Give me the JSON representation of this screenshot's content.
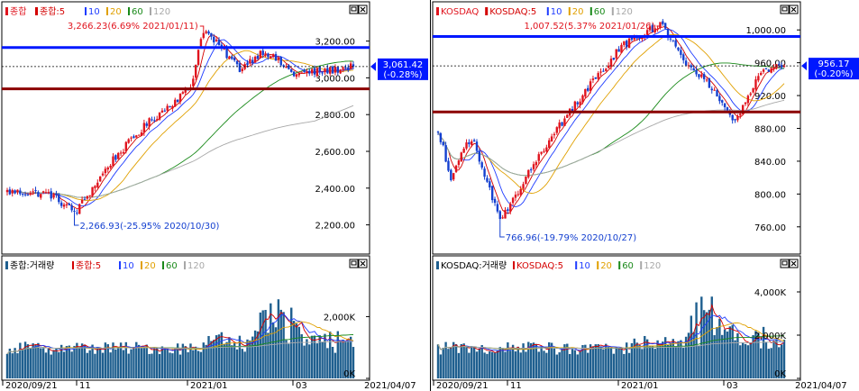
{
  "colors": {
    "up": "#e0141e",
    "down": "#1440d0",
    "ma5": "#d40000",
    "ma10": "#1e3cff",
    "ma20": "#e0a000",
    "ma60": "#1a8a1a",
    "ma120": "#a8a8a8",
    "blueline": "#0018ff",
    "redline": "#8b0000",
    "volbar": "#1f5f8f",
    "panel_border": "#000000"
  },
  "icons": [
    "window-maximize-icon",
    "window-close-icon",
    "price-marker-arrow-icon",
    "legend-square-icon"
  ],
  "xaxis": {
    "labels": [
      "2020/09/21",
      "11",
      "2021/01",
      "03",
      "2021/04/07"
    ]
  },
  "panels": [
    {
      "name": "kospi",
      "price_legend": {
        "sym": "종합",
        "ma5": "종합:5",
        "ma10": "10",
        "ma20": "20",
        "ma60": "60",
        "ma120": "120"
      },
      "vol_legend": {
        "vol": "종합:거래량",
        "ma5": "종합:5",
        "ma10": "10",
        "ma20": "20",
        "ma60": "60",
        "ma120": "120"
      },
      "price_ticks": [
        "3,200.00",
        "3,000.00",
        "2,800.00",
        "2,600.00",
        "2,400.00",
        "2,200.00"
      ],
      "vol_ticks": [
        "2,000K",
        "0K"
      ],
      "current": {
        "value": "3,061.42",
        "change": "(-0.28%)"
      },
      "high_annotation": "3,266.23(6.69% 2021/01/11)",
      "low_annotation": "2,266.93(-25.95% 2020/10/30)"
    },
    {
      "name": "kosdaq",
      "price_legend": {
        "sym": "KOSDAQ",
        "ma5": "KOSDAQ:5",
        "ma10": "10",
        "ma20": "20",
        "ma60": "60",
        "ma120": "120"
      },
      "vol_legend": {
        "vol": "KOSDAQ:거래량",
        "ma5": "KOSDAQ:5",
        "ma10": "10",
        "ma20": "20",
        "ma60": "60",
        "ma120": "120"
      },
      "price_ticks": [
        "1,000.00",
        "960.00",
        "920.00",
        "880.00",
        "840.00",
        "800.00",
        "760.00"
      ],
      "vol_ticks": [
        "4,000K",
        "2,000K",
        "0K"
      ],
      "current": {
        "value": "956.17",
        "change": "(-0.20%)"
      },
      "high_annotation": "1,007.52(5.37% 2021/01/26)",
      "low_annotation": "766.96(-19.79% 2020/10/27)"
    }
  ],
  "chart_data": [
    {
      "type": "candlestick",
      "title": "종합",
      "x_range": [
        "2020/09/21",
        "2021/04/07"
      ],
      "ylim": [
        2100,
        3350
      ],
      "key_points": [
        {
          "x": "2020/09/21",
          "y": 2380
        },
        {
          "x": "2020/10/15",
          "y": 2370
        },
        {
          "x": "2020/10/30",
          "y": 2267
        },
        {
          "x": "2020/11/20",
          "y": 2550
        },
        {
          "x": "2020/12/10",
          "y": 2750
        },
        {
          "x": "2021/01/04",
          "y": 2950
        },
        {
          "x": "2021/01/11",
          "y": 3266
        },
        {
          "x": "2021/02/01",
          "y": 3050
        },
        {
          "x": "2021/02/15",
          "y": 3150
        },
        {
          "x": "2021/03/04",
          "y": 3020
        },
        {
          "x": "2021/03/25",
          "y": 3040
        },
        {
          "x": "2021/04/07",
          "y": 3061.42
        }
      ],
      "horizontal_lines": [
        {
          "value": 3165,
          "color": "blue"
        },
        {
          "value": 2940,
          "color": "darkred"
        }
      ],
      "current_value": 3061.42,
      "moving_averages": [
        "5",
        "10",
        "20",
        "60",
        "120"
      ],
      "volume_ylim": [
        0,
        3500
      ],
      "volume_ticks": [
        0,
        2000
      ]
    },
    {
      "type": "candlestick",
      "title": "KOSDAQ",
      "x_range": [
        "2020/09/21",
        "2021/04/07"
      ],
      "ylim": [
        740,
        1020
      ],
      "key_points": [
        {
          "x": "2020/09/21",
          "y": 880
        },
        {
          "x": "2020/09/28",
          "y": 820
        },
        {
          "x": "2020/10/10",
          "y": 870
        },
        {
          "x": "2020/10/27",
          "y": 767
        },
        {
          "x": "2020/11/15",
          "y": 840
        },
        {
          "x": "2020/12/05",
          "y": 900
        },
        {
          "x": "2021/01/04",
          "y": 980
        },
        {
          "x": "2021/01/26",
          "y": 1007.52
        },
        {
          "x": "2021/02/10",
          "y": 960
        },
        {
          "x": "2021/02/25",
          "y": 930
        },
        {
          "x": "2021/03/10",
          "y": 885
        },
        {
          "x": "2021/03/25",
          "y": 950
        },
        {
          "x": "2021/04/07",
          "y": 956.17
        }
      ],
      "horizontal_lines": [
        {
          "value": 992,
          "color": "blue"
        },
        {
          "value": 900,
          "color": "darkred"
        }
      ],
      "current_value": 956.17,
      "moving_averages": [
        "5",
        "10",
        "20",
        "60",
        "120"
      ],
      "volume_ylim": [
        0,
        5000
      ],
      "volume_ticks": [
        0,
        2000,
        4000
      ]
    }
  ]
}
